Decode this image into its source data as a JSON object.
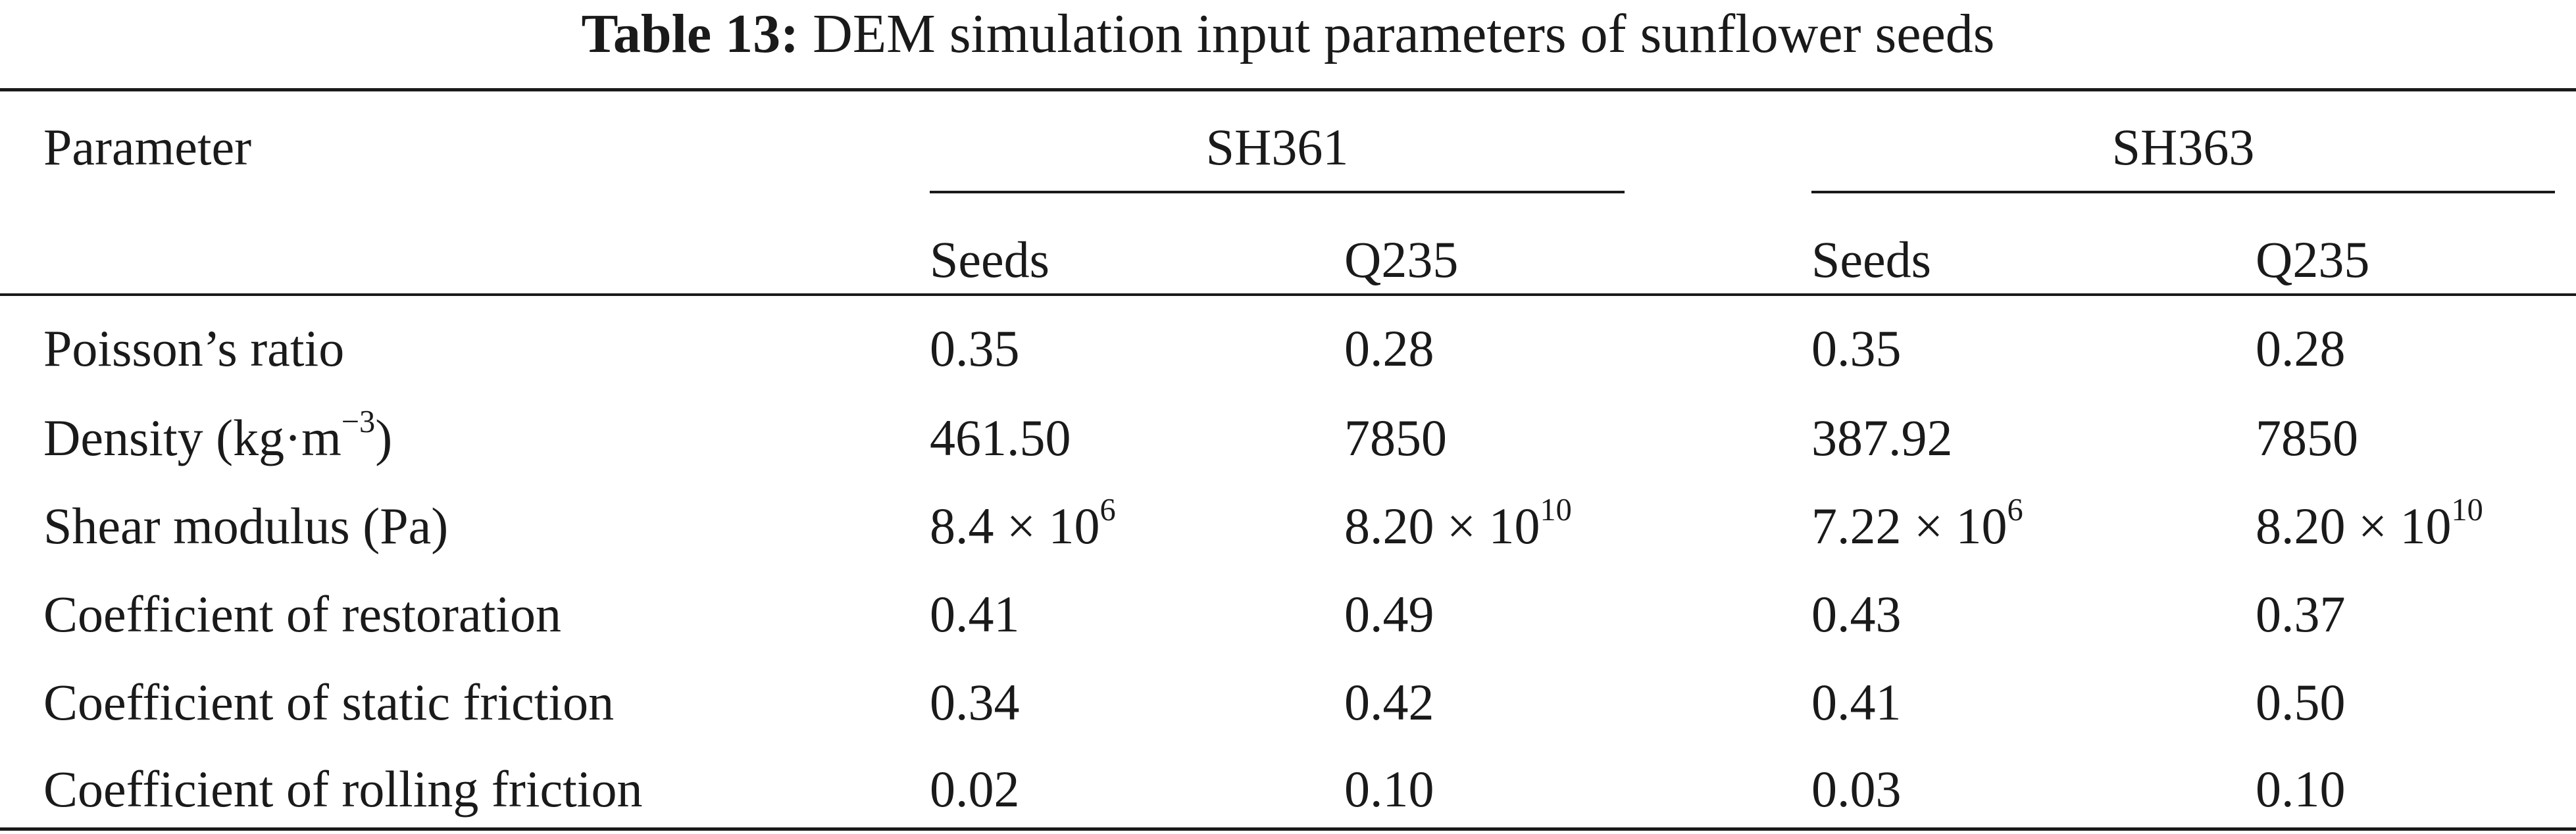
{
  "caption": {
    "label": "Table 13:",
    "text": "DEM simulation input parameters of sunflower seeds"
  },
  "table": {
    "header": {
      "parameter": "Parameter",
      "groups": [
        {
          "name": "SH361",
          "cols": [
            "Seeds",
            "Q235"
          ]
        },
        {
          "name": "SH363",
          "cols": [
            "Seeds",
            "Q235"
          ]
        }
      ]
    },
    "rows": [
      {
        "param": "Poisson’s ratio",
        "param_unit_base": "",
        "param_unit_exp": "",
        "param_unit_close": "",
        "values": [
          {
            "base": "0.35",
            "exp": ""
          },
          {
            "base": "0.28",
            "exp": ""
          },
          {
            "base": "0.35",
            "exp": ""
          },
          {
            "base": "0.28",
            "exp": ""
          }
        ]
      },
      {
        "param": "Density (kg·m",
        "param_unit_exp": "−3",
        "param_unit_close": ")",
        "values": [
          {
            "base": "461.50",
            "exp": ""
          },
          {
            "base": "7850",
            "exp": ""
          },
          {
            "base": "387.92",
            "exp": ""
          },
          {
            "base": "7850",
            "exp": ""
          }
        ]
      },
      {
        "param": "Shear modulus (Pa)",
        "param_unit_exp": "",
        "param_unit_close": "",
        "values": [
          {
            "base": "8.4 × 10",
            "exp": "6"
          },
          {
            "base": "8.20 × 10",
            "exp": "10"
          },
          {
            "base": "7.22 × 10",
            "exp": "6"
          },
          {
            "base": "8.20 × 10",
            "exp": "10"
          }
        ]
      },
      {
        "param": "Coefficient of restoration",
        "param_unit_exp": "",
        "param_unit_close": "",
        "values": [
          {
            "base": "0.41",
            "exp": ""
          },
          {
            "base": "0.49",
            "exp": ""
          },
          {
            "base": "0.43",
            "exp": ""
          },
          {
            "base": "0.37",
            "exp": ""
          }
        ]
      },
      {
        "param": "Coefficient of static friction",
        "param_unit_exp": "",
        "param_unit_close": "",
        "values": [
          {
            "base": "0.34",
            "exp": ""
          },
          {
            "base": "0.42",
            "exp": ""
          },
          {
            "base": "0.41",
            "exp": ""
          },
          {
            "base": "0.50",
            "exp": ""
          }
        ]
      },
      {
        "param": "Coefficient of rolling friction",
        "param_unit_exp": "",
        "param_unit_close": "",
        "values": [
          {
            "base": "0.02",
            "exp": ""
          },
          {
            "base": "0.10",
            "exp": ""
          },
          {
            "base": "0.03",
            "exp": ""
          },
          {
            "base": "0.10",
            "exp": ""
          }
        ]
      }
    ]
  }
}
